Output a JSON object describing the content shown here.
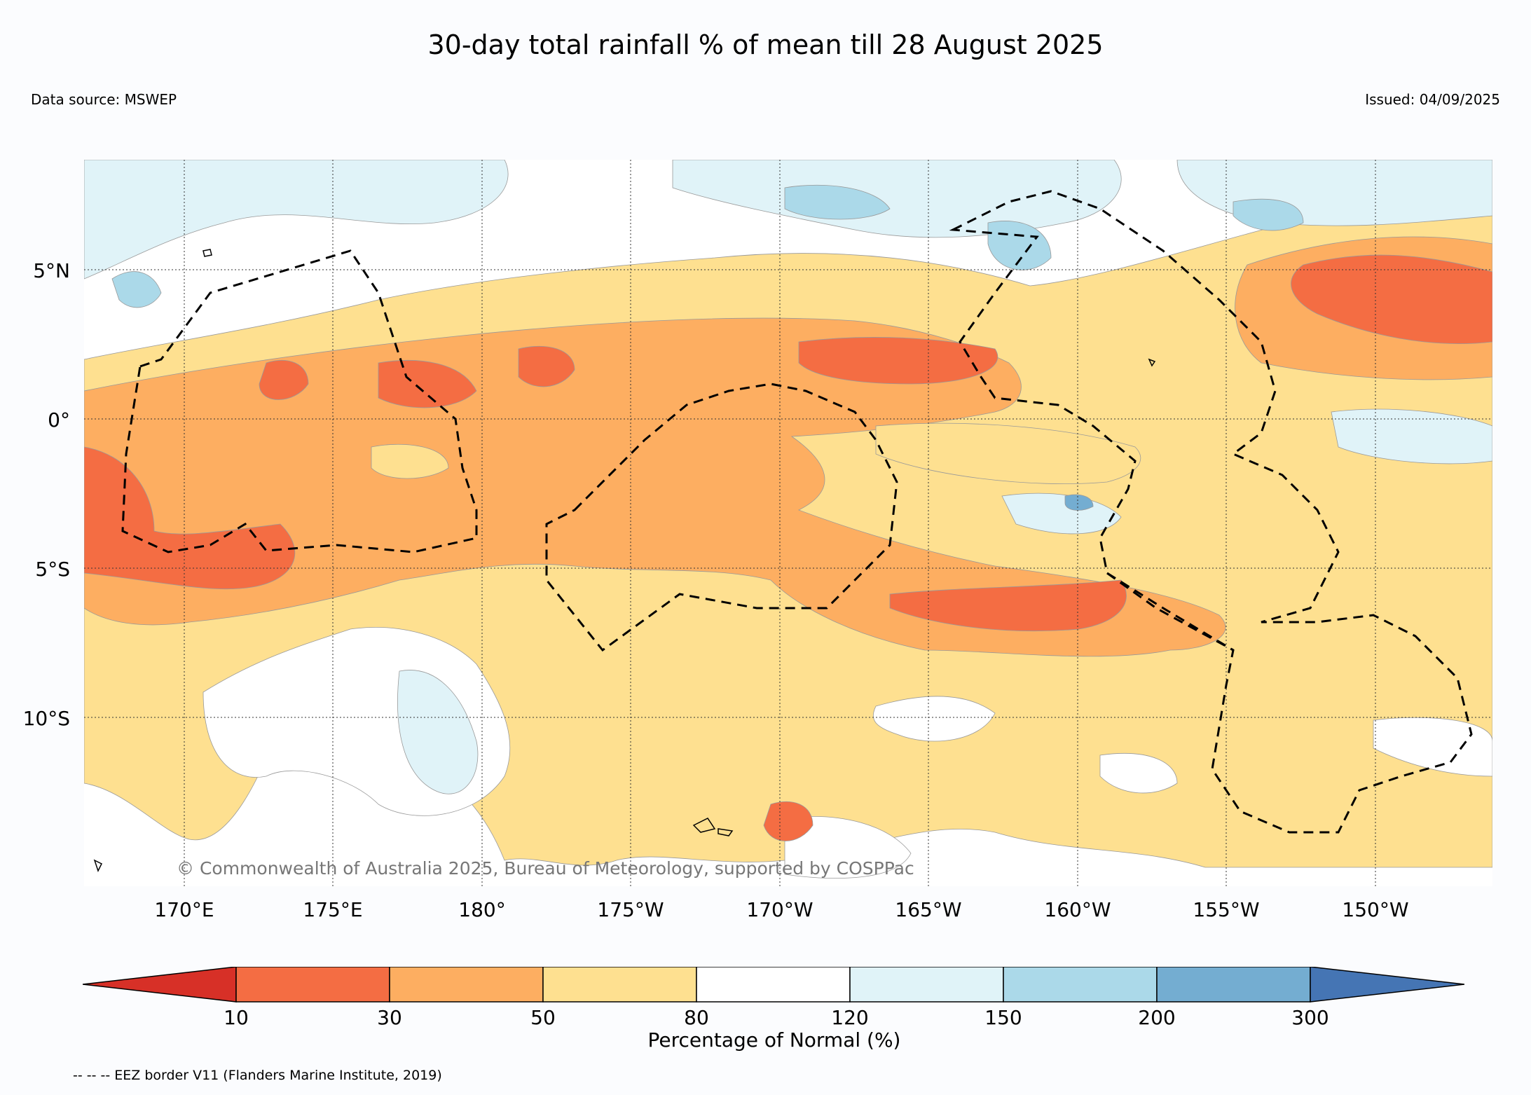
{
  "title": "30-day total rainfall % of mean till 28 August 2025",
  "data_source": "Data source: MSWEP",
  "issued": "Issued: 04/09/2025",
  "copyright": "© Commonwealth of Australia 2025, Bureau of Meteorology, supported by COSPPac",
  "lat_labels": [
    "5°N",
    "0°",
    "5°S",
    "10°S"
  ],
  "lon_labels": [
    "170°E",
    "175°E",
    "180°",
    "175°W",
    "170°W",
    "165°W",
    "160°W",
    "155°W",
    "150°W"
  ],
  "colorbar": {
    "label": "Percentage of Normal (%)",
    "ticks": [
      "10",
      "30",
      "50",
      "80",
      "120",
      "150",
      "200",
      "300"
    ],
    "colors": [
      "#d73027",
      "#f46d43",
      "#fdae61",
      "#fee090",
      "#ffffff",
      "#e0f3f8",
      "#abd9e9",
      "#74add1",
      "#4575b4"
    ]
  },
  "eez_note": "-- -- -- EEZ border V11 (Flanders Marine Institute, 2019)",
  "colors": {
    "band_10_30": "#f46d43",
    "band_30_50": "#fdae61",
    "band_50_80": "#fee090",
    "band_80_120": "#ffffff",
    "band_120_150": "#e0f3f8",
    "band_150_200": "#abd9e9",
    "band_200_300": "#74add1"
  }
}
